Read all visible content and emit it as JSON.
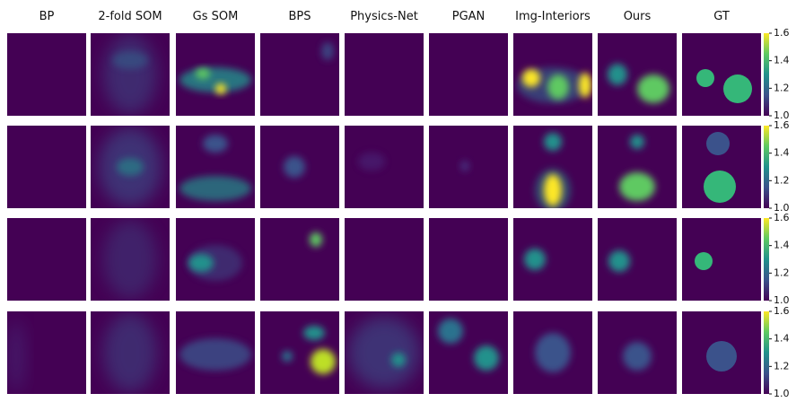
{
  "columns": [
    "BP",
    "2-fold SOM",
    "Gs SOM",
    "BPS",
    "Physics-Net",
    "PGAN",
    "Img-Interiors",
    "Ours",
    "GT"
  ],
  "colorbar": {
    "lim": [
      1.0,
      1.6
    ],
    "ticks": [
      {
        "value": 1,
        "label": "1.0"
      },
      {
        "value": 1.2,
        "label": "1.2"
      },
      {
        "value": 1.4,
        "label": "1.4"
      },
      {
        "value": 1.6,
        "label": "1.6"
      }
    ]
  }
}
